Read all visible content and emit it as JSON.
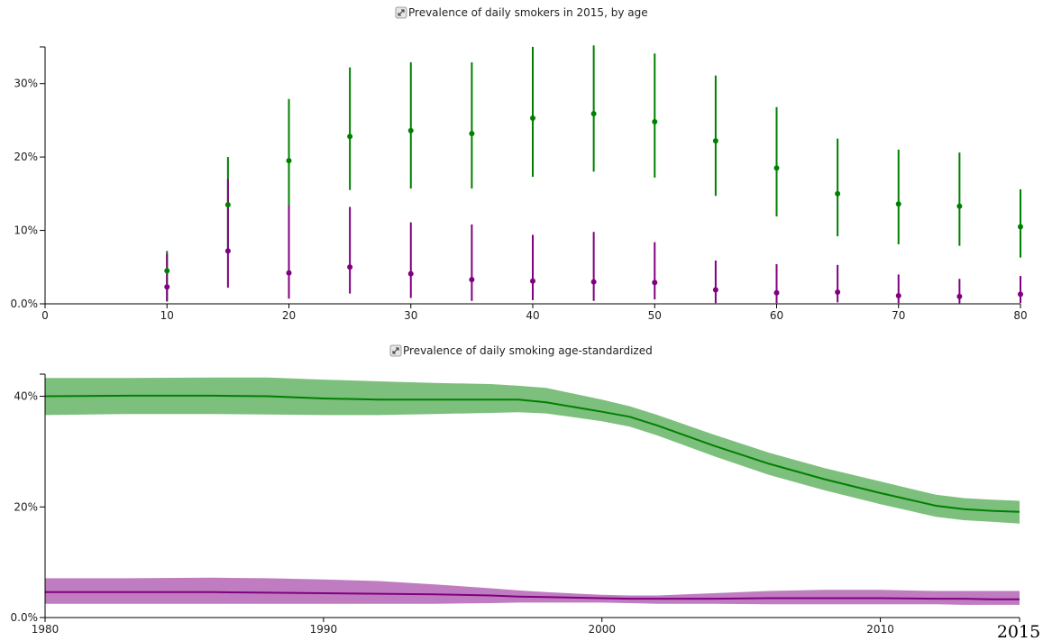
{
  "colors": {
    "male": "#008000",
    "female": "#800080",
    "male_band": "#7dbf7d",
    "female_band": "#c07cc0",
    "axis": "#000000"
  },
  "icons": {
    "expand": "expand-icon"
  },
  "chart_data": [
    {
      "type": "scatter",
      "title": "Prevalence of daily smokers in 2015, by age",
      "xlabel": "",
      "ylabel": "",
      "xlim": [
        0,
        80
      ],
      "ylim": [
        0,
        0.35
      ],
      "x_ticks": [
        0,
        10,
        20,
        30,
        40,
        50,
        60,
        70,
        80
      ],
      "x_tick_labels": [
        "0",
        "10",
        "20",
        "30",
        "40",
        "50",
        "60",
        "70",
        "80"
      ],
      "y_ticks": [
        0,
        0.1,
        0.2,
        0.3
      ],
      "y_tick_labels": [
        "0.0%",
        "10%",
        "20%",
        "30%"
      ],
      "grid": false,
      "error_bars": true,
      "series": [
        {
          "color": "#008000",
          "x": [
            10,
            15,
            20,
            25,
            30,
            35,
            40,
            45,
            50,
            55,
            60,
            65,
            70,
            75,
            80
          ],
          "y": [
            0.045,
            0.135,
            0.195,
            0.228,
            0.236,
            0.232,
            0.253,
            0.259,
            0.248,
            0.222,
            0.185,
            0.15,
            0.136,
            0.133,
            0.105
          ],
          "lower": [
            0.003,
            0.072,
            0.132,
            0.155,
            0.157,
            0.157,
            0.173,
            0.18,
            0.172,
            0.147,
            0.119,
            0.092,
            0.081,
            0.079,
            0.063
          ],
          "upper": [
            0.072,
            0.2,
            0.279,
            0.322,
            0.329,
            0.329,
            0.35,
            0.352,
            0.341,
            0.311,
            0.268,
            0.225,
            0.21,
            0.206,
            0.156
          ]
        },
        {
          "color": "#800080",
          "x": [
            10,
            15,
            20,
            25,
            30,
            35,
            40,
            45,
            50,
            55,
            60,
            65,
            70,
            75,
            80
          ],
          "y": [
            0.023,
            0.072,
            0.042,
            0.05,
            0.041,
            0.033,
            0.031,
            0.03,
            0.029,
            0.019,
            0.015,
            0.016,
            0.011,
            0.01,
            0.013
          ],
          "lower": [
            0.004,
            0.022,
            0.007,
            0.014,
            0.008,
            0.004,
            0.005,
            0.004,
            0.006,
            0.001,
            0.001,
            0.002,
            0.001,
            0.0,
            0.001
          ],
          "upper": [
            0.068,
            0.17,
            0.134,
            0.132,
            0.111,
            0.108,
            0.094,
            0.098,
            0.084,
            0.059,
            0.054,
            0.053,
            0.04,
            0.034,
            0.038
          ]
        }
      ]
    },
    {
      "type": "area",
      "title": "Prevalence of daily smoking age-standardized",
      "xlabel": "",
      "ylabel": "",
      "xlim": [
        1980,
        2015
      ],
      "ylim": [
        0,
        0.44
      ],
      "x_ticks": [
        1980,
        1990,
        2000,
        2010
      ],
      "x_tick_labels": [
        "1980",
        "1990",
        "2000",
        "2010"
      ],
      "x_end_label": "2015",
      "y_ticks": [
        0,
        0.2,
        0.4
      ],
      "y_tick_labels": [
        "0.0%",
        "20%",
        "40%"
      ],
      "grid": false,
      "x": [
        1980,
        1983,
        1986,
        1988,
        1990,
        1992,
        1994,
        1996,
        1997,
        1998,
        2000,
        2001,
        2002,
        2004,
        2006,
        2008,
        2010,
        2012,
        2013,
        2014,
        2015
      ],
      "series": [
        {
          "color": "#008000",
          "band_color": "#7dbf7d",
          "values": [
            0.4,
            0.401,
            0.401,
            0.4,
            0.396,
            0.394,
            0.394,
            0.394,
            0.394,
            0.389,
            0.372,
            0.363,
            0.347,
            0.311,
            0.278,
            0.25,
            0.225,
            0.202,
            0.196,
            0.193,
            0.191
          ],
          "lower": [
            0.366,
            0.368,
            0.368,
            0.367,
            0.366,
            0.366,
            0.368,
            0.37,
            0.371,
            0.369,
            0.355,
            0.345,
            0.329,
            0.292,
            0.258,
            0.23,
            0.205,
            0.182,
            0.176,
            0.173,
            0.17
          ],
          "upper": [
            0.433,
            0.433,
            0.434,
            0.434,
            0.43,
            0.427,
            0.424,
            0.422,
            0.419,
            0.415,
            0.394,
            0.382,
            0.366,
            0.331,
            0.298,
            0.27,
            0.246,
            0.222,
            0.216,
            0.213,
            0.211
          ]
        },
        {
          "color": "#800080",
          "band_color": "#c07cc0",
          "values": [
            0.046,
            0.046,
            0.046,
            0.045,
            0.044,
            0.043,
            0.042,
            0.04,
            0.038,
            0.037,
            0.035,
            0.034,
            0.034,
            0.034,
            0.035,
            0.035,
            0.035,
            0.034,
            0.034,
            0.033,
            0.033
          ],
          "lower": [
            0.025,
            0.025,
            0.025,
            0.025,
            0.025,
            0.025,
            0.025,
            0.026,
            0.027,
            0.027,
            0.027,
            0.026,
            0.025,
            0.025,
            0.024,
            0.024,
            0.024,
            0.024,
            0.023,
            0.023,
            0.023
          ],
          "upper": [
            0.071,
            0.071,
            0.072,
            0.071,
            0.069,
            0.066,
            0.06,
            0.053,
            0.049,
            0.046,
            0.041,
            0.04,
            0.04,
            0.044,
            0.048,
            0.05,
            0.05,
            0.048,
            0.048,
            0.048,
            0.048
          ]
        }
      ]
    }
  ]
}
